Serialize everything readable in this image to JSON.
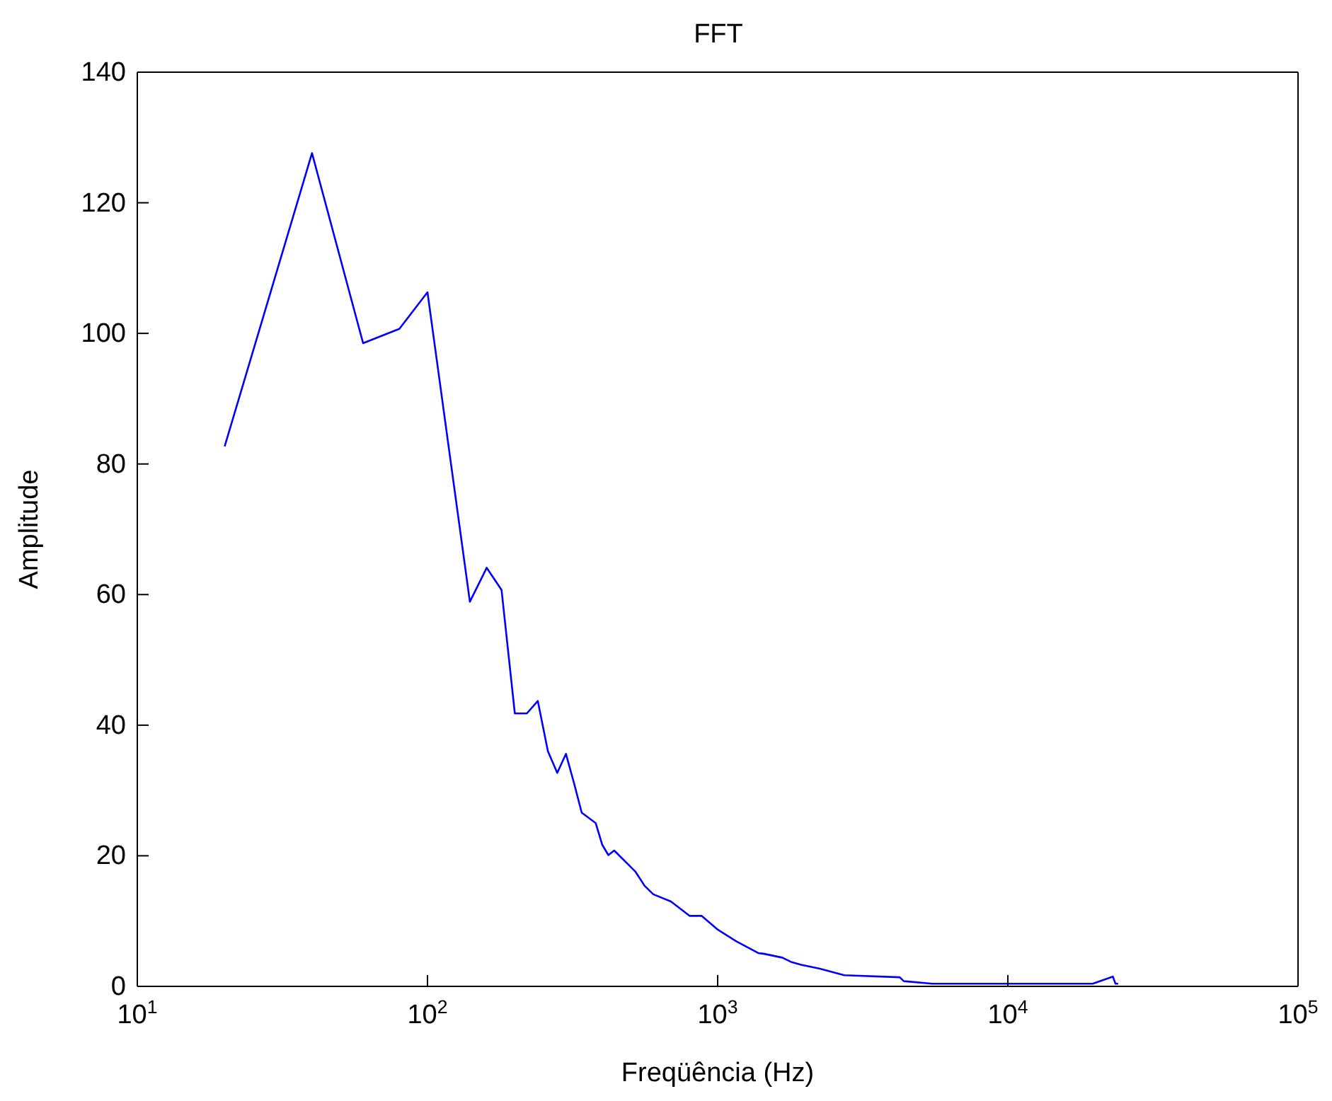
{
  "chart_data": {
    "type": "line",
    "title": "FFT",
    "xlabel": "Freqüência (Hz)",
    "ylabel": "Amplitude",
    "log": "x",
    "x": [
      20,
      40,
      60,
      80,
      100,
      140,
      160,
      180,
      200,
      220,
      240,
      260,
      280,
      300,
      320,
      340,
      380,
      400,
      420,
      440,
      520,
      560,
      600,
      690,
      800,
      880,
      1000,
      1160,
      1380,
      1440,
      1670,
      1800,
      1940,
      2250,
      2730,
      4240,
      4380,
      5500,
      19600,
      23000,
      23500,
      24000
    ],
    "series": [
      {
        "color": "#0000ff",
        "values": [
          82.7,
          127.6,
          98.5,
          100.7,
          106.3,
          58.9,
          64.1,
          60.7,
          41.8,
          41.8,
          43.7,
          36.0,
          32.7,
          35.6,
          31.1,
          26.6,
          25.0,
          21.7,
          20.1,
          20.8,
          17.6,
          15.4,
          14.1,
          13.0,
          10.8,
          10.8,
          8.7,
          6.9,
          5.1,
          5.0,
          4.4,
          3.7,
          3.3,
          2.7,
          1.7,
          1.4,
          0.8,
          0.4,
          0.4,
          1.5,
          0.4,
          0.4
        ]
      }
    ],
    "xlim": [
      10,
      100000
    ],
    "xticks": [
      {
        "value": 10,
        "label": "10$^{1}$"
      },
      {
        "value": 100,
        "label": "10$^{2}$"
      },
      {
        "value": 1000,
        "label": "10$^{3}$"
      },
      {
        "value": 10000,
        "label": "10$^{4}$"
      },
      {
        "value": 100000,
        "label": "10$^{5}$"
      }
    ],
    "ylim": [
      0,
      140
    ],
    "yticks": [
      0,
      20,
      40,
      60,
      80,
      100,
      120,
      140
    ],
    "grid": false,
    "marker": "none",
    "line_style": "solid"
  }
}
